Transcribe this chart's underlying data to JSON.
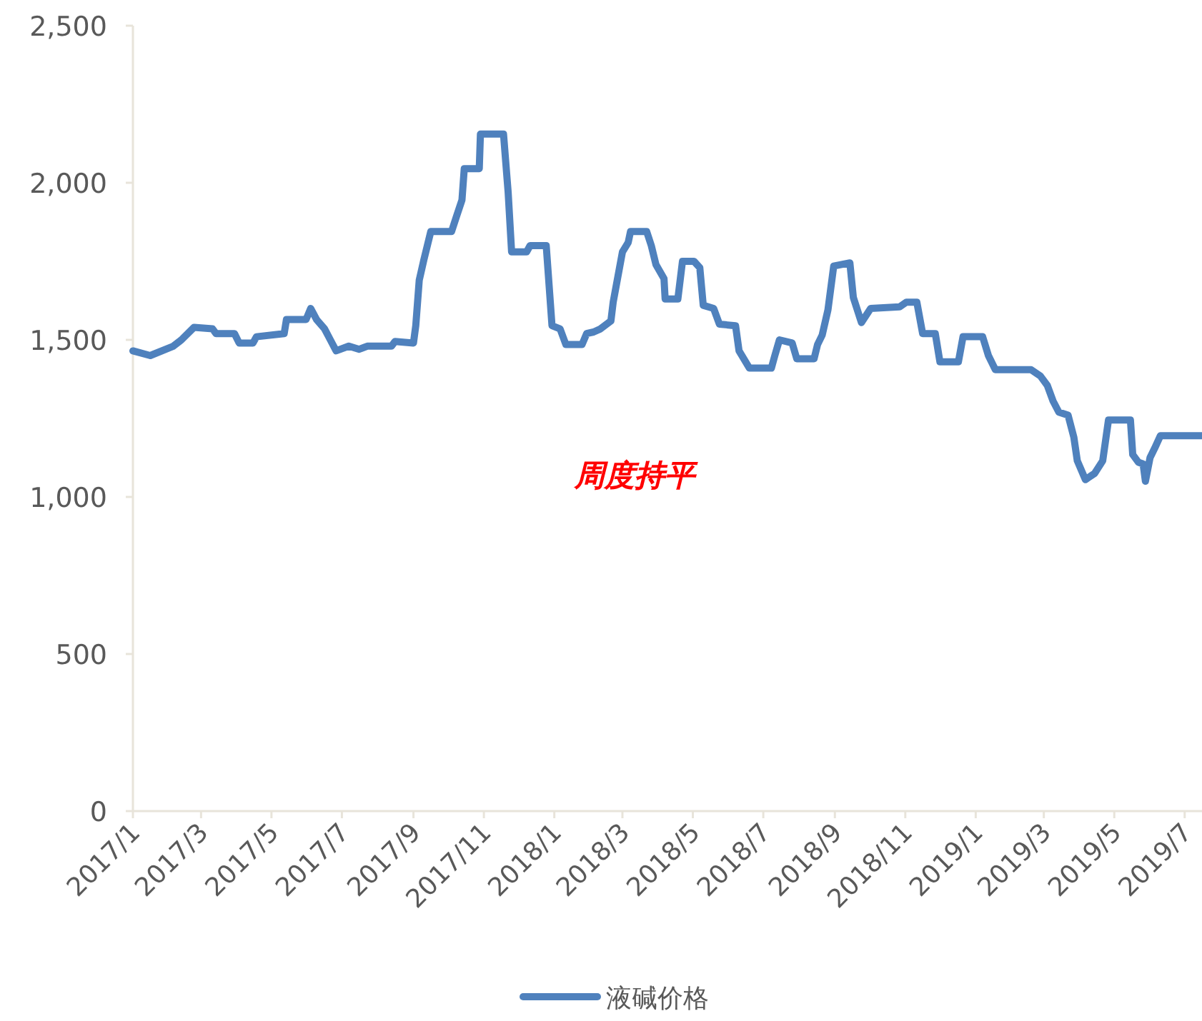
{
  "chart_data": {
    "type": "line",
    "annotations": [
      "周度持平"
    ],
    "legend": "bottom",
    "grid": false,
    "marker": "none",
    "line_style": "solid",
    "xlim": [
      "2017-01-01",
      "2019-07-16"
    ],
    "xticks": [
      {
        "value": "2017-01-01",
        "label": "2017/1"
      },
      {
        "value": "2017-03-01",
        "label": "2017/3"
      },
      {
        "value": "2017-05-01",
        "label": "2017/5"
      },
      {
        "value": "2017-07-01",
        "label": "2017/7"
      },
      {
        "value": "2017-09-01",
        "label": "2017/9"
      },
      {
        "value": "2017-11-01",
        "label": "2017/11"
      },
      {
        "value": "2018-01-01",
        "label": "2018/1"
      },
      {
        "value": "2018-03-01",
        "label": "2018/3"
      },
      {
        "value": "2018-05-01",
        "label": "2018/5"
      },
      {
        "value": "2018-07-01",
        "label": "2018/7"
      },
      {
        "value": "2018-09-01",
        "label": "2018/9"
      },
      {
        "value": "2018-11-01",
        "label": "2018/11"
      },
      {
        "value": "2019-01-01",
        "label": "2019/1"
      },
      {
        "value": "2019-03-01",
        "label": "2019/3"
      },
      {
        "value": "2019-05-01",
        "label": "2019/5"
      },
      {
        "value": "2019-07-01",
        "label": "2019/7"
      }
    ],
    "ylim": [
      0,
      2500
    ],
    "yticks": [
      0,
      500,
      {
        "value": 1000,
        "label": "1,000"
      },
      {
        "value": 1500,
        "label": "1,500"
      },
      {
        "value": 2000,
        "label": "2,000"
      },
      {
        "value": 2500,
        "label": "2,500"
      }
    ],
    "x": [
      "2017-01-01",
      "2017-01-16",
      "2017-02-05",
      "2017-02-12",
      "2017-02-23",
      "2017-03-11",
      "2017-03-14",
      "2017-03-30",
      "2017-04-03",
      "2017-04-15",
      "2017-04-18",
      "2017-05-12",
      "2017-05-14",
      "2017-05-31",
      "2017-06-04",
      "2017-06-09",
      "2017-06-16",
      "2017-06-21",
      "2017-06-26",
      "2017-07-07",
      "2017-07-16",
      "2017-07-23",
      "2017-08-13",
      "2017-08-16",
      "2017-09-01",
      "2017-09-03",
      "2017-09-06",
      "2017-09-10",
      "2017-09-16",
      "2017-10-04",
      "2017-10-08",
      "2017-10-13",
      "2017-10-15",
      "2017-10-28",
      "2017-10-29",
      "2017-11-18",
      "2017-11-22",
      "2017-11-25",
      "2017-12-08",
      "2017-12-11",
      "2017-12-25",
      "2017-12-30",
      "2018-01-06",
      "2018-01-11",
      "2018-01-25",
      "2018-01-29",
      "2018-02-04",
      "2018-02-10",
      "2018-02-19",
      "2018-02-21",
      "2018-03-01",
      "2018-03-06",
      "2018-03-08",
      "2018-03-22",
      "2018-03-26",
      "2018-03-30",
      "2018-04-06",
      "2018-04-07",
      "2018-04-18",
      "2018-04-22",
      "2018-05-02",
      "2018-05-07",
      "2018-05-10",
      "2018-05-19",
      "2018-05-24",
      "2018-06-07",
      "2018-06-10",
      "2018-06-19",
      "2018-07-08",
      "2018-07-11",
      "2018-07-15",
      "2018-07-26",
      "2018-07-30",
      "2018-08-14",
      "2018-08-17",
      "2018-08-21",
      "2018-08-26",
      "2018-08-31",
      "2018-09-14",
      "2018-09-17",
      "2018-09-24",
      "2018-10-02",
      "2018-10-27",
      "2018-11-02",
      "2018-11-11",
      "2018-11-16",
      "2018-11-27",
      "2018-12-01",
      "2018-12-17",
      "2018-12-21",
      "2019-01-07",
      "2019-01-12",
      "2019-01-18",
      "2019-02-18",
      "2019-02-26",
      "2019-03-04",
      "2019-03-09",
      "2019-03-14",
      "2019-03-22",
      "2019-03-27",
      "2019-03-30",
      "2019-04-06",
      "2019-04-14",
      "2019-04-21",
      "2019-04-26",
      "2019-05-15",
      "2019-05-17",
      "2019-05-22",
      "2019-05-26",
      "2019-05-28",
      "2019-06-01",
      "2019-06-05",
      "2019-06-10",
      "2019-07-16"
    ],
    "series": [
      {
        "name": "液碱价格",
        "color": "#4f81bd",
        "values": [
          1465,
          1450,
          1480,
          1500,
          1540,
          1535,
          1520,
          1520,
          1490,
          1490,
          1510,
          1520,
          1565,
          1565,
          1600,
          1565,
          1535,
          1500,
          1465,
          1480,
          1470,
          1480,
          1480,
          1495,
          1490,
          1545,
          1690,
          1755,
          1845,
          1845,
          1890,
          1945,
          2045,
          2045,
          2155,
          2155,
          1970,
          1780,
          1780,
          1800,
          1800,
          1545,
          1535,
          1485,
          1485,
          1520,
          1525,
          1535,
          1560,
          1620,
          1780,
          1810,
          1845,
          1845,
          1800,
          1740,
          1695,
          1630,
          1630,
          1750,
          1750,
          1730,
          1610,
          1600,
          1550,
          1545,
          1465,
          1410,
          1410,
          1450,
          1500,
          1490,
          1440,
          1440,
          1485,
          1515,
          1595,
          1735,
          1745,
          1635,
          1555,
          1600,
          1605,
          1620,
          1620,
          1520,
          1520,
          1430,
          1430,
          1510,
          1510,
          1450,
          1405,
          1405,
          1385,
          1355,
          1305,
          1270,
          1260,
          1190,
          1115,
          1055,
          1075,
          1115,
          1245,
          1245,
          1135,
          1110,
          1105,
          1050,
          1125,
          1155,
          1195,
          1195
        ]
      }
    ]
  }
}
